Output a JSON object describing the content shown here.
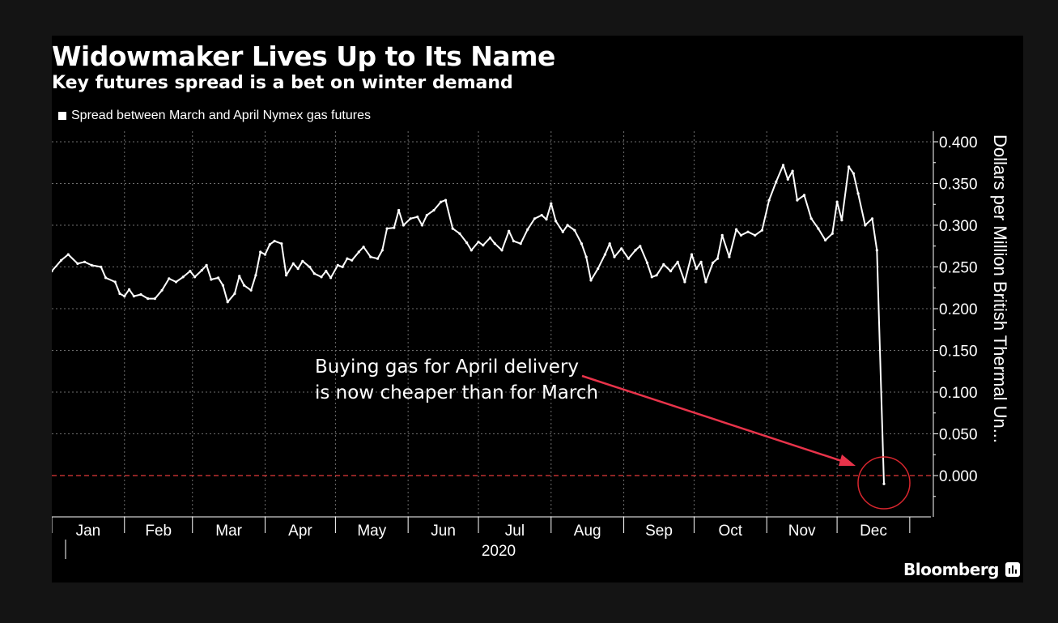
{
  "title": "Widowmaker Lives Up to Its Name",
  "subtitle": "Key futures spread is a bet on winter demand",
  "legend_label": "Spread between March and April Nymex gas futures",
  "annotation": [
    "Buying gas for April delivery",
    "is now cheaper than for March"
  ],
  "source_brand": "Bloomberg",
  "colors": {
    "background": "#000000",
    "outer": "#141414",
    "series": "#ffffff",
    "grid": "#6e6e6e",
    "zero_line": "#e33b3b",
    "annotation_arrow": "#e8334a",
    "circle": "#d8262e"
  },
  "chart_data": {
    "type": "line",
    "xlabel": "2020",
    "ylabel": "Dollars per Million British Thermal Un...",
    "ylim": [
      -0.05,
      0.41
    ],
    "y_ticks": [
      "0.400",
      "0.350",
      "0.300",
      "0.250",
      "0.200",
      "0.150",
      "0.100",
      "0.050",
      "0.000"
    ],
    "y_tick_values": [
      0.4,
      0.35,
      0.3,
      0.25,
      0.2,
      0.15,
      0.1,
      0.05,
      0.0
    ],
    "x_tick_labels": [
      "Jan",
      "Feb",
      "Mar",
      "Apr",
      "May",
      "Jun",
      "Jul",
      "Aug",
      "Sep",
      "Oct",
      "Nov",
      "Dec"
    ],
    "axis_position": "right",
    "grid": true,
    "legend_position": "top-left",
    "reference_line": {
      "y": 0.0,
      "style": "dashed",
      "color": "#e33b3b"
    },
    "x_range": [
      "2020-01-01",
      "2020-12-21"
    ],
    "series": [
      {
        "name": "Spread between March and April Nymex gas futures",
        "points": [
          [
            "2020-01-01",
            0.245
          ],
          [
            "2020-01-05",
            0.258
          ],
          [
            "2020-01-08",
            0.265
          ],
          [
            "2020-01-12",
            0.254
          ],
          [
            "2020-01-15",
            0.256
          ],
          [
            "2020-01-18",
            0.252
          ],
          [
            "2020-01-22",
            0.25
          ],
          [
            "2020-01-24",
            0.237
          ],
          [
            "2020-01-28",
            0.232
          ],
          [
            "2020-01-30",
            0.218
          ],
          [
            "2020-02-01",
            0.215
          ],
          [
            "2020-02-03",
            0.223
          ],
          [
            "2020-02-05",
            0.215
          ],
          [
            "2020-02-08",
            0.217
          ],
          [
            "2020-02-11",
            0.212
          ],
          [
            "2020-02-14",
            0.212
          ],
          [
            "2020-02-17",
            0.222
          ],
          [
            "2020-02-20",
            0.236
          ],
          [
            "2020-02-23",
            0.232
          ],
          [
            "2020-02-26",
            0.238
          ],
          [
            "2020-02-29",
            0.245
          ],
          [
            "2020-03-02",
            0.238
          ],
          [
            "2020-03-05",
            0.246
          ],
          [
            "2020-03-07",
            0.252
          ],
          [
            "2020-03-09",
            0.235
          ],
          [
            "2020-03-12",
            0.237
          ],
          [
            "2020-03-14",
            0.228
          ],
          [
            "2020-03-16",
            0.208
          ],
          [
            "2020-03-19",
            0.218
          ],
          [
            "2020-03-21",
            0.239
          ],
          [
            "2020-03-23",
            0.228
          ],
          [
            "2020-03-26",
            0.222
          ],
          [
            "2020-03-28",
            0.24
          ],
          [
            "2020-03-30",
            0.268
          ],
          [
            "2020-04-01",
            0.265
          ],
          [
            "2020-04-03",
            0.277
          ],
          [
            "2020-04-05",
            0.281
          ],
          [
            "2020-04-08",
            0.278
          ],
          [
            "2020-04-10",
            0.24
          ],
          [
            "2020-04-13",
            0.254
          ],
          [
            "2020-04-15",
            0.248
          ],
          [
            "2020-04-17",
            0.257
          ],
          [
            "2020-04-20",
            0.25
          ],
          [
            "2020-04-22",
            0.242
          ],
          [
            "2020-04-25",
            0.238
          ],
          [
            "2020-04-27",
            0.245
          ],
          [
            "2020-04-29",
            0.237
          ],
          [
            "2020-05-02",
            0.252
          ],
          [
            "2020-05-04",
            0.25
          ],
          [
            "2020-05-06",
            0.26
          ],
          [
            "2020-05-08",
            0.258
          ],
          [
            "2020-05-11",
            0.268
          ],
          [
            "2020-05-13",
            0.274
          ],
          [
            "2020-05-16",
            0.262
          ],
          [
            "2020-05-19",
            0.26
          ],
          [
            "2020-05-21",
            0.27
          ],
          [
            "2020-05-23",
            0.296
          ],
          [
            "2020-05-26",
            0.297
          ],
          [
            "2020-05-28",
            0.318
          ],
          [
            "2020-05-30",
            0.3
          ],
          [
            "2020-06-02",
            0.308
          ],
          [
            "2020-06-05",
            0.31
          ],
          [
            "2020-06-07",
            0.3
          ],
          [
            "2020-06-09",
            0.312
          ],
          [
            "2020-06-12",
            0.318
          ],
          [
            "2020-06-15",
            0.328
          ],
          [
            "2020-06-17",
            0.33
          ],
          [
            "2020-06-20",
            0.296
          ],
          [
            "2020-06-23",
            0.29
          ],
          [
            "2020-06-26",
            0.279
          ],
          [
            "2020-06-28",
            0.27
          ],
          [
            "2020-07-01",
            0.28
          ],
          [
            "2020-07-03",
            0.276
          ],
          [
            "2020-07-06",
            0.285
          ],
          [
            "2020-07-08",
            0.278
          ],
          [
            "2020-07-11",
            0.27
          ],
          [
            "2020-07-14",
            0.293
          ],
          [
            "2020-07-16",
            0.281
          ],
          [
            "2020-07-19",
            0.278
          ],
          [
            "2020-07-22",
            0.295
          ],
          [
            "2020-07-25",
            0.308
          ],
          [
            "2020-07-28",
            0.312
          ],
          [
            "2020-07-30",
            0.307
          ],
          [
            "2020-08-01",
            0.326
          ],
          [
            "2020-08-03",
            0.305
          ],
          [
            "2020-08-06",
            0.292
          ],
          [
            "2020-08-08",
            0.3
          ],
          [
            "2020-08-11",
            0.294
          ],
          [
            "2020-08-14",
            0.278
          ],
          [
            "2020-08-16",
            0.262
          ],
          [
            "2020-08-18",
            0.234
          ],
          [
            "2020-08-21",
            0.248
          ],
          [
            "2020-08-24",
            0.265
          ],
          [
            "2020-08-26",
            0.278
          ],
          [
            "2020-08-28",
            0.262
          ],
          [
            "2020-08-31",
            0.272
          ],
          [
            "2020-09-03",
            0.26
          ],
          [
            "2020-09-06",
            0.27
          ],
          [
            "2020-09-08",
            0.275
          ],
          [
            "2020-09-11",
            0.255
          ],
          [
            "2020-09-13",
            0.238
          ],
          [
            "2020-09-15",
            0.24
          ],
          [
            "2020-09-18",
            0.253
          ],
          [
            "2020-09-21",
            0.245
          ],
          [
            "2020-09-24",
            0.256
          ],
          [
            "2020-09-27",
            0.232
          ],
          [
            "2020-09-30",
            0.265
          ],
          [
            "2020-10-02",
            0.248
          ],
          [
            "2020-10-04",
            0.256
          ],
          [
            "2020-10-06",
            0.232
          ],
          [
            "2020-10-09",
            0.255
          ],
          [
            "2020-10-11",
            0.26
          ],
          [
            "2020-10-13",
            0.288
          ],
          [
            "2020-10-16",
            0.262
          ],
          [
            "2020-10-19",
            0.295
          ],
          [
            "2020-10-21",
            0.288
          ],
          [
            "2020-10-24",
            0.292
          ],
          [
            "2020-10-27",
            0.288
          ],
          [
            "2020-10-30",
            0.294
          ],
          [
            "2020-11-02",
            0.33
          ],
          [
            "2020-11-05",
            0.352
          ],
          [
            "2020-11-08",
            0.372
          ],
          [
            "2020-11-10",
            0.355
          ],
          [
            "2020-11-12",
            0.365
          ],
          [
            "2020-11-14",
            0.33
          ],
          [
            "2020-11-17",
            0.336
          ],
          [
            "2020-11-20",
            0.308
          ],
          [
            "2020-11-23",
            0.296
          ],
          [
            "2020-11-26",
            0.282
          ],
          [
            "2020-11-29",
            0.29
          ],
          [
            "2020-12-01",
            0.328
          ],
          [
            "2020-12-03",
            0.306
          ],
          [
            "2020-12-06",
            0.37
          ],
          [
            "2020-12-08",
            0.362
          ],
          [
            "2020-12-10",
            0.338
          ],
          [
            "2020-12-13",
            0.3
          ],
          [
            "2020-12-16",
            0.308
          ],
          [
            "2020-12-18",
            0.27
          ],
          [
            "2020-12-21",
            -0.01
          ]
        ]
      }
    ]
  }
}
